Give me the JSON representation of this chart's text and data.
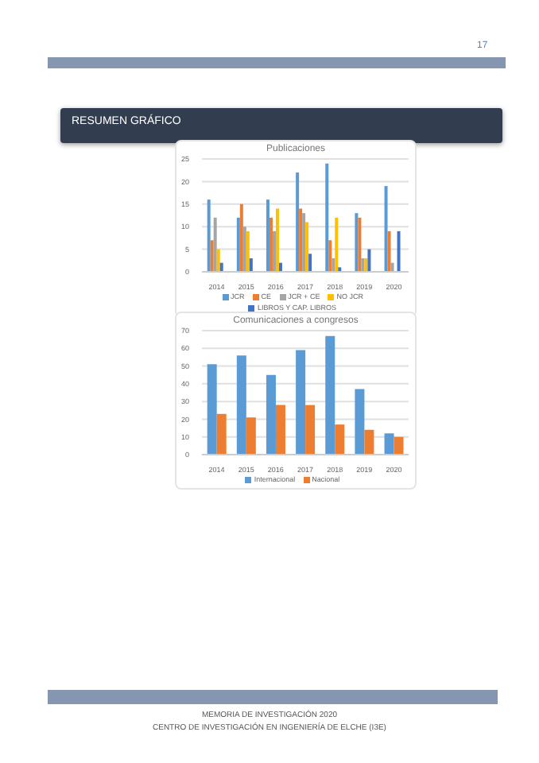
{
  "chart_data": [
    {
      "type": "bar",
      "title": "Publicaciones",
      "annotations": [
        "17",
        "RESUMEN GRÁFICO"
      ],
      "categories": [
        "2014",
        "2015",
        "2016",
        "2017",
        "2018",
        "2019",
        "2020"
      ],
      "series": [
        {
          "name": "JCR",
          "color": "#5b9bd5",
          "values": [
            16,
            12,
            16,
            22,
            24,
            13,
            19
          ]
        },
        {
          "name": "CE",
          "color": "#ed7d31",
          "values": [
            7,
            15,
            12,
            14,
            7,
            12,
            9
          ]
        },
        {
          "name": "JCR + CE",
          "color": "#a5a5a5",
          "values": [
            12,
            10,
            9,
            13,
            3,
            3,
            2
          ]
        },
        {
          "name": "NO JCR",
          "color": "#ffc000",
          "values": [
            5,
            9,
            14,
            11,
            12,
            3,
            0
          ]
        },
        {
          "name": "LIBROS Y CAP. LIBROS",
          "color": "#4472c4",
          "values": [
            2,
            3,
            2,
            4,
            1,
            5,
            9
          ]
        }
      ],
      "ylim": [
        0,
        25
      ],
      "yticks": [
        0,
        5,
        10,
        15,
        20,
        25
      ],
      "grid": "y",
      "legend": "bottom"
    },
    {
      "type": "bar",
      "title": "Comunicaciones a congresos",
      "annotations": [
        "MEMORIA DE INVESTIGACIÓN 2020",
        "CENTRO DE INVESTIGACIÓN EN INGENIERÍA DE ELCHE (I3E)"
      ],
      "categories": [
        "2014",
        "2015",
        "2016",
        "2017",
        "2018",
        "2019",
        "2020"
      ],
      "series": [
        {
          "name": "Internacional",
          "color": "#5b9bd5",
          "values": [
            51,
            56,
            45,
            59,
            67,
            37,
            12
          ]
        },
        {
          "name": "Nacional",
          "color": "#ed7d31",
          "values": [
            23,
            21,
            28,
            28,
            17,
            14,
            10
          ]
        }
      ],
      "ylim": [
        0,
        70
      ],
      "yticks": [
        0,
        10,
        20,
        30,
        40,
        50,
        60,
        70
      ],
      "grid": "y",
      "legend": "bottom"
    }
  ]
}
